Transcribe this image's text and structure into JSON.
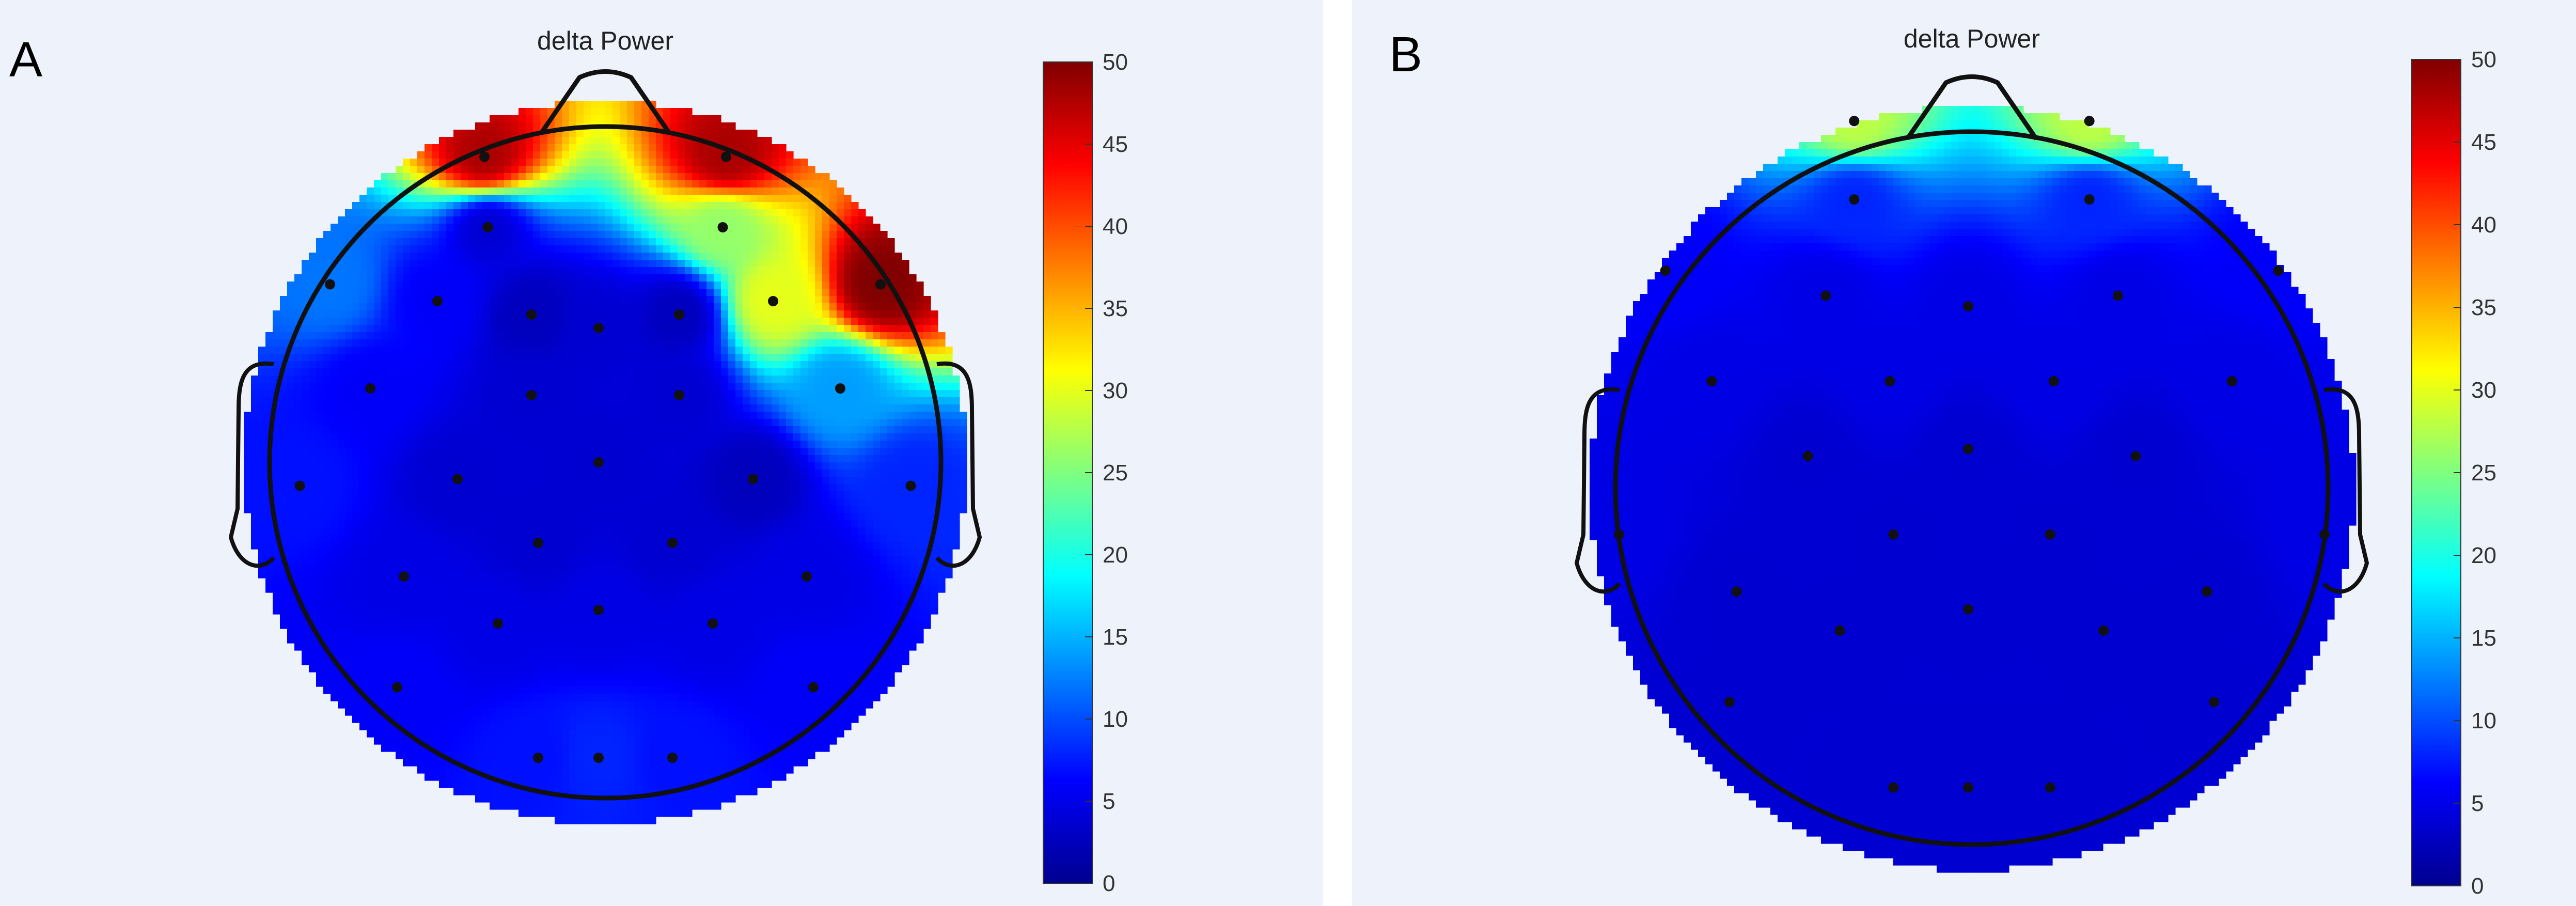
{
  "figure": {
    "panels": [
      {
        "letter": "A",
        "title": "delta Power"
      },
      {
        "letter": "B",
        "title": "delta Power"
      }
    ]
  },
  "chart_data": [
    {
      "type": "heatmap",
      "subtype": "scalp-topography",
      "panel": "A",
      "title": "delta Power",
      "colormap": "jet",
      "clim": [
        0,
        50
      ],
      "colorbar_ticks": [
        "0",
        "5",
        "10",
        "15",
        "20",
        "25",
        "30",
        "35",
        "40",
        "45",
        "50"
      ],
      "colorbar_position": "right",
      "background": "#eef3fb",
      "electrodes": [
        {
          "x": 0.36,
          "y": 0.91,
          "v": 48
        },
        {
          "x": -0.36,
          "y": 0.91,
          "v": 48
        },
        {
          "x": 0.35,
          "y": 0.7,
          "v": 26
        },
        {
          "x": -0.35,
          "y": 0.7,
          "v": 4
        },
        {
          "x": 0.5,
          "y": 0.48,
          "v": 30
        },
        {
          "x": 0.22,
          "y": 0.44,
          "v": 3
        },
        {
          "x": -0.02,
          "y": 0.4,
          "v": 4
        },
        {
          "x": -0.22,
          "y": 0.44,
          "v": 3
        },
        {
          "x": -0.5,
          "y": 0.48,
          "v": 6
        },
        {
          "x": 0.82,
          "y": 0.53,
          "v": 50
        },
        {
          "x": -0.82,
          "y": 0.53,
          "v": 12
        },
        {
          "x": 0.7,
          "y": 0.22,
          "v": 14
        },
        {
          "x": 0.22,
          "y": 0.2,
          "v": 4
        },
        {
          "x": -0.22,
          "y": 0.2,
          "v": 4
        },
        {
          "x": -0.7,
          "y": 0.22,
          "v": 6
        },
        {
          "x": 0.44,
          "y": -0.05,
          "v": 3
        },
        {
          "x": -0.02,
          "y": 0.0,
          "v": 4
        },
        {
          "x": -0.44,
          "y": -0.05,
          "v": 4
        },
        {
          "x": 0.91,
          "y": -0.07,
          "v": 8
        },
        {
          "x": -0.91,
          "y": -0.07,
          "v": 7
        },
        {
          "x": 0.2,
          "y": -0.24,
          "v": 4
        },
        {
          "x": -0.2,
          "y": -0.24,
          "v": 4
        },
        {
          "x": 0.6,
          "y": -0.34,
          "v": 5
        },
        {
          "x": -0.6,
          "y": -0.34,
          "v": 5
        },
        {
          "x": -0.02,
          "y": -0.44,
          "v": 5
        },
        {
          "x": 0.32,
          "y": -0.48,
          "v": 5
        },
        {
          "x": -0.32,
          "y": -0.48,
          "v": 5
        },
        {
          "x": 0.62,
          "y": -0.67,
          "v": 6
        },
        {
          "x": -0.62,
          "y": -0.67,
          "v": 6
        },
        {
          "x": 0.2,
          "y": -0.88,
          "v": 7
        },
        {
          "x": -0.02,
          "y": -0.88,
          "v": 8
        },
        {
          "x": -0.2,
          "y": -0.88,
          "v": 7
        }
      ]
    },
    {
      "type": "heatmap",
      "subtype": "scalp-topography",
      "panel": "B",
      "title": "delta Power",
      "colormap": "jet",
      "clim": [
        0,
        50
      ],
      "colorbar_ticks": [
        "0",
        "5",
        "10",
        "15",
        "20",
        "25",
        "30",
        "35",
        "40",
        "45",
        "50"
      ],
      "colorbar_position": "right",
      "background": "#eef3fb",
      "electrodes": [
        {
          "x": 0.33,
          "y": 1.03,
          "v": 28
        },
        {
          "x": -0.33,
          "y": 1.03,
          "v": 28
        },
        {
          "x": 0.33,
          "y": 0.81,
          "v": 8
        },
        {
          "x": -0.33,
          "y": 0.81,
          "v": 8
        },
        {
          "x": 0.86,
          "y": 0.61,
          "v": 6
        },
        {
          "x": 0.41,
          "y": 0.54,
          "v": 5
        },
        {
          "x": -0.01,
          "y": 0.51,
          "v": 5
        },
        {
          "x": -0.41,
          "y": 0.54,
          "v": 5
        },
        {
          "x": -0.86,
          "y": 0.61,
          "v": 6
        },
        {
          "x": 0.73,
          "y": 0.3,
          "v": 5
        },
        {
          "x": 0.23,
          "y": 0.3,
          "v": 5
        },
        {
          "x": -0.23,
          "y": 0.3,
          "v": 5
        },
        {
          "x": -0.73,
          "y": 0.3,
          "v": 5
        },
        {
          "x": 0.46,
          "y": 0.09,
          "v": 4
        },
        {
          "x": -0.01,
          "y": 0.11,
          "v": 4
        },
        {
          "x": -0.46,
          "y": 0.09,
          "v": 4
        },
        {
          "x": 0.99,
          "y": -0.13,
          "v": 5
        },
        {
          "x": -0.99,
          "y": -0.13,
          "v": 5
        },
        {
          "x": 0.22,
          "y": -0.13,
          "v": 4
        },
        {
          "x": -0.22,
          "y": -0.13,
          "v": 4
        },
        {
          "x": 0.66,
          "y": -0.29,
          "v": 4
        },
        {
          "x": -0.66,
          "y": -0.29,
          "v": 4
        },
        {
          "x": -0.01,
          "y": -0.34,
          "v": 4
        },
        {
          "x": 0.37,
          "y": -0.4,
          "v": 4
        },
        {
          "x": -0.37,
          "y": -0.4,
          "v": 4
        },
        {
          "x": 0.68,
          "y": -0.6,
          "v": 4
        },
        {
          "x": -0.68,
          "y": -0.6,
          "v": 4
        },
        {
          "x": 0.22,
          "y": -0.84,
          "v": 4
        },
        {
          "x": -0.01,
          "y": -0.84,
          "v": 4
        },
        {
          "x": -0.22,
          "y": -0.84,
          "v": 4
        }
      ]
    }
  ]
}
